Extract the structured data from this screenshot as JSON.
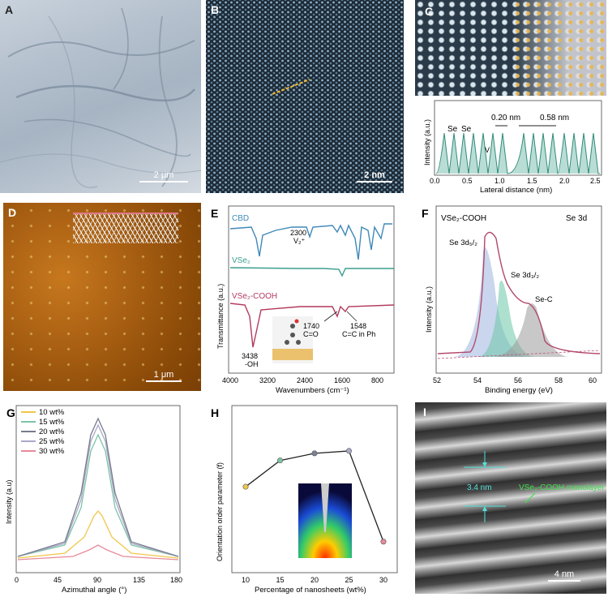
{
  "panels": {
    "A": {
      "label": "A",
      "scale_bar": "2 μm"
    },
    "B": {
      "label": "B",
      "scale_bar": "2 nm"
    },
    "C": {
      "label": "C",
      "ylabel": "Intensity (a.u.)",
      "xlabel": "Lateral distance (nm)",
      "annotations": [
        "Se",
        "Se",
        "V",
        "0.20 nm",
        "0.58 nm"
      ],
      "xticks": [
        "0.0",
        "0.5",
        "1.0",
        "1.5",
        "2.0",
        "2.5"
      ]
    },
    "D": {
      "label": "D",
      "scale_bar": "1 μm"
    },
    "E": {
      "label": "E",
      "ylabel": "Transmittance (a.u.)",
      "xlabel": "Wavenumbers (cm⁻¹)",
      "xticks": [
        "4000",
        "3200",
        "2400",
        "1600",
        "800"
      ],
      "series_labels": [
        "CBD",
        "VSe₂",
        "VSe₂-COOH"
      ],
      "annotations": [
        "2300",
        "V₂⁺",
        "1740",
        "C=O",
        "1548",
        "C=C in Ph",
        "3438",
        "-OH"
      ]
    },
    "F": {
      "label": "F",
      "title_left": "VSe₂-COOH",
      "title_right": "Se 3d",
      "ylabel": "Intensity (a.u.)",
      "xlabel": "Binding energy (eV)",
      "xticks": [
        "52",
        "54",
        "56",
        "58",
        "60"
      ],
      "peaks": [
        "Se 3d₅/₂",
        "Se 3d₃/₂",
        "Se-C"
      ]
    },
    "G": {
      "label": "G",
      "ylabel": "Intensity (a.u)",
      "xlabel": "Azimuthal angle (°)",
      "xticks": [
        "0",
        "45",
        "90",
        "135",
        "180"
      ],
      "legend": [
        {
          "name": "10 wt%",
          "color": "#f0c64a"
        },
        {
          "name": "15 wt%",
          "color": "#7cc4a6"
        },
        {
          "name": "20 wt%",
          "color": "#777c8c"
        },
        {
          "name": "25 wt%",
          "color": "#a9a9c9"
        },
        {
          "name": "30 wt%",
          "color": "#e78a9a"
        }
      ]
    },
    "H": {
      "label": "H"
    },
    "I": {
      "label": "I",
      "spacing": "3.4 nm",
      "annotation": "VSe₂-COOH monolayer",
      "scale_bar": "4 nm"
    }
  },
  "chart_data": [
    {
      "type": "line",
      "panel": "H",
      "title": "",
      "xlabel": "Percentage of nanosheets (wt%)",
      "ylabel": "Orientation order parameter (f)",
      "x": [
        10,
        15,
        20,
        25,
        30
      ],
      "y": [
        0.56,
        0.67,
        0.7,
        0.71,
        0.33
      ],
      "point_colors": [
        "#f0c64a",
        "#7cc4a6",
        "#7b8196",
        "#a9a9c9",
        "#e78a9a"
      ],
      "xlim": [
        8,
        32
      ],
      "ylim": [
        0.2,
        0.9
      ],
      "xticks": [
        "10",
        "15",
        "20",
        "25",
        "30"
      ]
    }
  ]
}
